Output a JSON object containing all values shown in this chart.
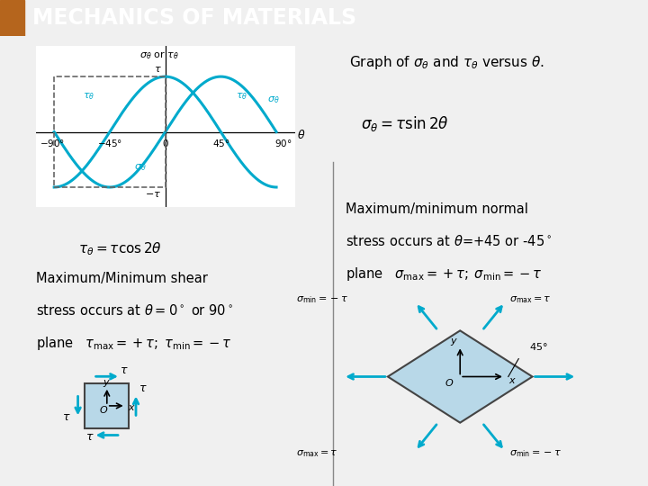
{
  "title": "MECHANICS OF MATERIALS",
  "title_bg": "#2e5494",
  "title_color": "#ffffff",
  "sidebar_color": "#b5651d",
  "bg_color": "#f0f0f0",
  "curve_color": "#00aacc",
  "dashed_box_color": "#666666",
  "teal_bg": "#00aa88",
  "eq1": "$\\sigma_\\theta = \\tau \\sin 2\\theta$",
  "eq2": "$\\tau_\\theta = \\tau \\cos 2\\theta$",
  "text_graph_desc": "Graph of $\\sigma_\\theta$ and $\\tau_\\theta$ versus $\\theta$.",
  "divider_color": "#888888",
  "sq_face": "#b8d8e8",
  "sq_edge": "#444444",
  "arrow_color": "#00aacc"
}
